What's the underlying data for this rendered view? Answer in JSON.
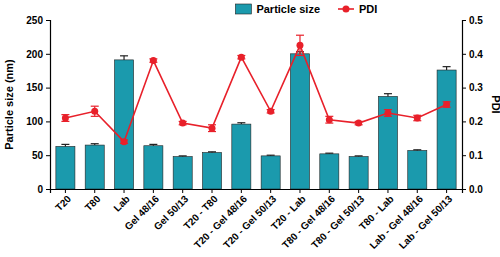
{
  "chart_data": {
    "type": "bar",
    "y_label": "Particle size  (nm)",
    "y2_label": "PDI",
    "categories": [
      "T20",
      "T80",
      "Lab",
      "Gel 48/16",
      "Gel 50/13",
      "T20 - T80",
      "T20 - Gel 48/16",
      "T20 - Gel 50/13",
      "T20 - Lab",
      "T80 - Gel 48/16",
      "T80 - Gel 50/13",
      "T80 - Lab",
      "Lab - Gel 48/16",
      "Lab - Gel 50/13"
    ],
    "series": [
      {
        "name": "Particle size",
        "type": "bar",
        "color": "#1b9aad",
        "values": [
          63,
          65,
          191,
          64,
          48,
          54,
          96,
          49,
          200,
          52,
          48,
          137,
          57,
          176
        ],
        "errors": [
          3,
          2,
          6,
          2,
          1,
          1,
          2,
          1,
          3,
          1,
          1,
          4,
          1,
          5
        ]
      },
      {
        "name": "PDI",
        "type": "line",
        "axis": "y2",
        "color": "#e8202a",
        "marker": "circle",
        "line_style": "solid",
        "values": [
          0.21,
          0.23,
          0.14,
          0.38,
          0.195,
          0.18,
          0.39,
          0.23,
          0.425,
          0.205,
          0.195,
          0.225,
          0.21,
          0.25
        ],
        "errors": [
          0.01,
          0.015,
          0.005,
          0.005,
          0.005,
          0.01,
          0.005,
          0.005,
          0.03,
          0.01,
          0.005,
          0.01,
          0.008,
          0.008
        ]
      }
    ],
    "ylim": [
      0,
      250
    ],
    "yticks": [
      0,
      50,
      100,
      150,
      200,
      250
    ],
    "y2lim": [
      0,
      0.5
    ],
    "y2ticks": [
      {
        "value": 0,
        "label": "0.0"
      },
      0.1,
      0.2,
      0.3,
      0.4,
      0.5
    ],
    "legend": "top",
    "grid": false
  }
}
